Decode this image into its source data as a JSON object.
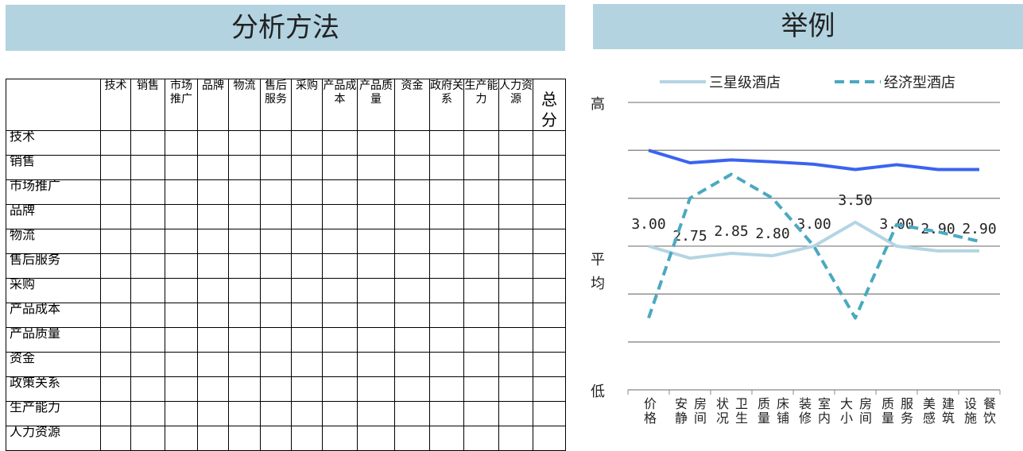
{
  "left": {
    "title": "分析方法",
    "columns": [
      "技术",
      "销售",
      "市场推广",
      "品牌",
      "物流",
      "售后服务",
      "采购",
      "产品成本",
      "产品质量",
      "资金",
      "政府关系",
      "生产能力",
      "人力资源",
      "总分"
    ],
    "rows": [
      "技术",
      "销售",
      "市场推广",
      "品牌",
      "物流",
      "售后服务",
      "采购",
      "产品成本",
      "产品质量",
      "资金",
      "政策关系",
      "生产能力",
      "人力资源"
    ]
  },
  "chart_data": {
    "type": "line",
    "title": "举例",
    "categories": [
      "价格",
      "房间安静",
      "卫生状况",
      "床铺质量",
      "室内装修",
      "房间大小",
      "服务质量",
      "建筑美感",
      "餐饮设施"
    ],
    "ylim": [
      0,
      6
    ],
    "yticks": [
      {
        "value": 6,
        "label": "高"
      },
      {
        "value": 2.75,
        "label": "平均"
      },
      {
        "value": 0,
        "label": "低"
      }
    ],
    "ygrid": [
      1,
      2,
      3,
      4,
      5,
      6
    ],
    "legend": "top",
    "series": [
      {
        "color": "#3a63f0",
        "values": [
          5.0,
          4.74,
          4.8,
          4.76,
          4.71,
          4.6,
          4.7,
          4.6,
          4.6
        ]
      },
      {
        "name": "三星级酒店",
        "color": "#b4d5e3",
        "values": [
          3.0,
          2.75,
          2.85,
          2.8,
          3.0,
          3.5,
          3.0,
          2.9,
          2.9
        ],
        "value_labels": [
          "3.00",
          "2.75",
          "2.85",
          "2.80",
          "3.00",
          "3.50",
          "3.00",
          "2.90",
          "2.90"
        ]
      },
      {
        "name": "经济型酒店",
        "color": "#4aa9c1",
        "dashed": true,
        "values": [
          1.5,
          4.0,
          4.5,
          4.0,
          3.0,
          1.5,
          3.45,
          3.3,
          3.1
        ]
      }
    ]
  }
}
